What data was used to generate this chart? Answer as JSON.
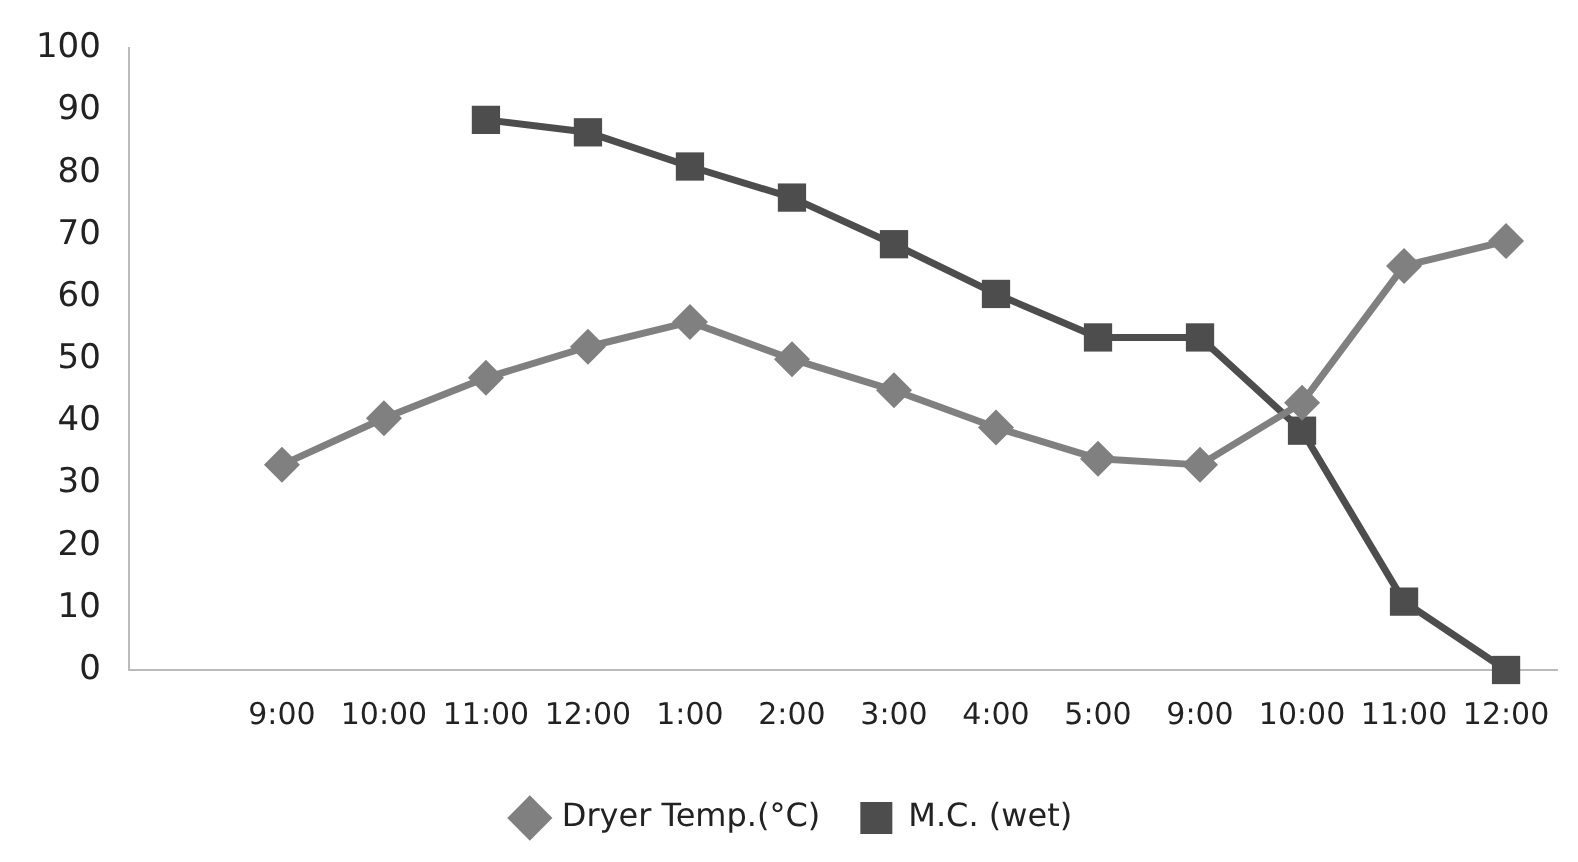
{
  "chart_data": {
    "type": "line",
    "categories": [
      null,
      "9:00",
      "10:00",
      "11:00",
      "12:00",
      "1:00",
      "2:00",
      "3:00",
      "4:00",
      "5:00",
      "9:00",
      "10:00",
      "11:00",
      "12:00"
    ],
    "series": [
      {
        "name": "Dryer Temp.(°C)",
        "color": "#808080",
        "marker": "diamond",
        "values": [
          null,
          33,
          40.5,
          47,
          52,
          56,
          50,
          45,
          39,
          34,
          33,
          43,
          65,
          69
        ]
      },
      {
        "name": "M.C. (wet)",
        "color": "#4d4d4d",
        "marker": "square",
        "values": [
          null,
          null,
          null,
          88.5,
          86.5,
          81,
          76,
          68.5,
          60.5,
          53.5,
          53.5,
          38.5,
          11,
          0
        ]
      }
    ],
    "ylim": [
      0,
      100
    ],
    "yticks": [
      0,
      10,
      20,
      30,
      40,
      50,
      60,
      70,
      80,
      90,
      100
    ],
    "grid": false,
    "legend": "bottom",
    "line_style": "solid"
  }
}
